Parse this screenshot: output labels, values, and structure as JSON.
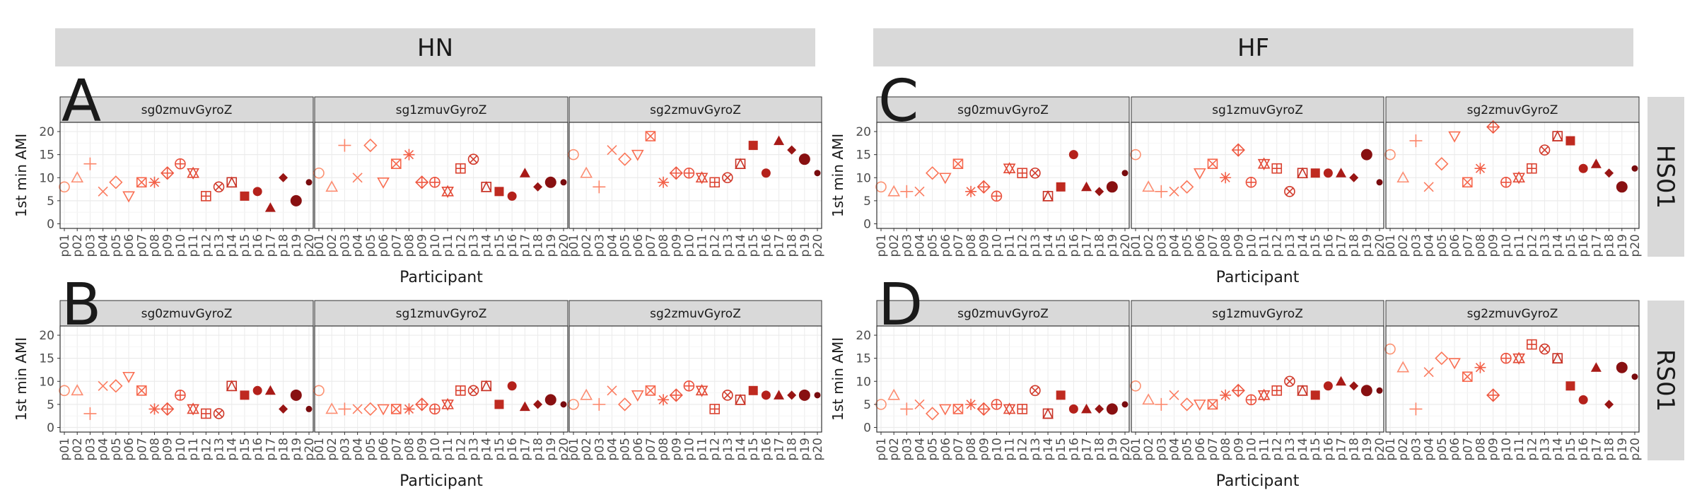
{
  "chart_data": {
    "type": "scatter",
    "y_label": "1st min AMI",
    "x_label": "Participant",
    "ylim": [
      -1,
      22
    ],
    "y_ticks": [
      0,
      5,
      10,
      15,
      20
    ],
    "grid": true,
    "legend": "none",
    "participants": [
      "p01",
      "p02",
      "p03",
      "p04",
      "p05",
      "p06",
      "p07",
      "p08",
      "p09",
      "p10",
      "p11",
      "p12",
      "p13",
      "p14",
      "p15",
      "p16",
      "p17",
      "p18",
      "p19",
      "p20"
    ],
    "shapes": [
      "circle-open",
      "triangle-open",
      "plus",
      "cross",
      "diamond-open",
      "triangle-down-open",
      "square-cross",
      "star",
      "diamond-plus",
      "circle-plus",
      "triangle-star",
      "square-plus",
      "circle-cross",
      "square-triangle",
      "square-filled",
      "circle-filled",
      "triangle-filled",
      "diamond-filled",
      "circle-filled-large",
      "circle-filled-small"
    ],
    "colors": [
      "#fc9272",
      "#fc8d72",
      "#fb8569",
      "#fb7d61",
      "#fb7658",
      "#f96e52",
      "#f6674d",
      "#f25f47",
      "#ee5841",
      "#ea503c",
      "#e34a36",
      "#da4230",
      "#d13a2b",
      "#c83225",
      "#bf2a20",
      "#b4211b",
      "#a81a17",
      "#981514",
      "#881011",
      "#780b0e"
    ],
    "columns": [
      "HN",
      "HF"
    ],
    "rows": [
      "HS01",
      "RS01"
    ],
    "panel_tags": [
      "A",
      "C",
      "B",
      "D"
    ],
    "sensors": [
      "sg0zmuvGyroZ",
      "sg1zmuvGyroZ",
      "sg2zmuvGyroZ"
    ],
    "panels": [
      {
        "tag": "A",
        "row": "HS01",
        "column": "HN",
        "sensor": "sg0zmuvGyroZ",
        "values": [
          8,
          10,
          13,
          7,
          9,
          6,
          9,
          9,
          11,
          13,
          11,
          6,
          8,
          9,
          6,
          7,
          3.5,
          10,
          5,
          9
        ]
      },
      {
        "tag": "A",
        "row": "HS01",
        "column": "HN",
        "sensor": "sg1zmuvGyroZ",
        "values": [
          11,
          8,
          17,
          10,
          17,
          9,
          13,
          15,
          9,
          9,
          7,
          12,
          14,
          8,
          7,
          6,
          11,
          8,
          9,
          9
        ]
      },
      {
        "tag": "A",
        "row": "HS01",
        "column": "HN",
        "sensor": "sg2zmuvGyroZ",
        "values": [
          15,
          11,
          8,
          16,
          14,
          15,
          19,
          9,
          11,
          11,
          10,
          9,
          10,
          13,
          17,
          11,
          18,
          16,
          14,
          11
        ]
      },
      {
        "tag": "C",
        "row": "HS01",
        "column": "HF",
        "sensor": "sg0zmuvGyroZ",
        "values": [
          8,
          7,
          7,
          7,
          11,
          10,
          13,
          7,
          8,
          6,
          12,
          11,
          11,
          6,
          8,
          15,
          8,
          7,
          8,
          11
        ]
      },
      {
        "tag": "C",
        "row": "HS01",
        "column": "HF",
        "sensor": "sg1zmuvGyroZ",
        "values": [
          15,
          8,
          7,
          7,
          8,
          11,
          13,
          10,
          16,
          9,
          13,
          12,
          7,
          11,
          11,
          11,
          11,
          10,
          15,
          9
        ]
      },
      {
        "tag": "C",
        "row": "HS01",
        "column": "HF",
        "sensor": "sg2zmuvGyroZ",
        "values": [
          15,
          10,
          18,
          8,
          13,
          19,
          9,
          12,
          21,
          9,
          10,
          12,
          16,
          19,
          18,
          12,
          13,
          11,
          8,
          12
        ]
      },
      {
        "tag": "B",
        "row": "RS01",
        "column": "HN",
        "sensor": "sg0zmuvGyroZ",
        "values": [
          8,
          8,
          3,
          9,
          9,
          11,
          8,
          4,
          4,
          7,
          4,
          3,
          3,
          9,
          7,
          8,
          8,
          4,
          7,
          4
        ]
      },
      {
        "tag": "B",
        "row": "RS01",
        "column": "HN",
        "sensor": "sg1zmuvGyroZ",
        "values": [
          8,
          4,
          4,
          4,
          4,
          4,
          4,
          4,
          5,
          4,
          5,
          8,
          8,
          9,
          5,
          9,
          4.5,
          5,
          6,
          5
        ]
      },
      {
        "tag": "B",
        "row": "RS01",
        "column": "HN",
        "sensor": "sg2zmuvGyroZ",
        "values": [
          5,
          7,
          5,
          8,
          5,
          7,
          8,
          6,
          7,
          9,
          8,
          4,
          7,
          6,
          8,
          7,
          7,
          7,
          7,
          7
        ]
      },
      {
        "tag": "D",
        "row": "RS01",
        "column": "HF",
        "sensor": "sg0zmuvGyroZ",
        "values": [
          5,
          7,
          4,
          5,
          3,
          4,
          4,
          5,
          4,
          5,
          4,
          4,
          8,
          3,
          7,
          4,
          4,
          4,
          4,
          5
        ]
      },
      {
        "tag": "D",
        "row": "RS01",
        "column": "HF",
        "sensor": "sg1zmuvGyroZ",
        "values": [
          9,
          6,
          5,
          7,
          5,
          5,
          5,
          7,
          8,
          6,
          7,
          8,
          10,
          8,
          7,
          9,
          10,
          9,
          8,
          8
        ]
      },
      {
        "tag": "D",
        "row": "RS01",
        "column": "HF",
        "sensor": "sg2zmuvGyroZ",
        "values": [
          17,
          13,
          4,
          12,
          15,
          14,
          11,
          13,
          7,
          15,
          15,
          18,
          17,
          15,
          9,
          6,
          13,
          5,
          13,
          11
        ]
      }
    ]
  }
}
